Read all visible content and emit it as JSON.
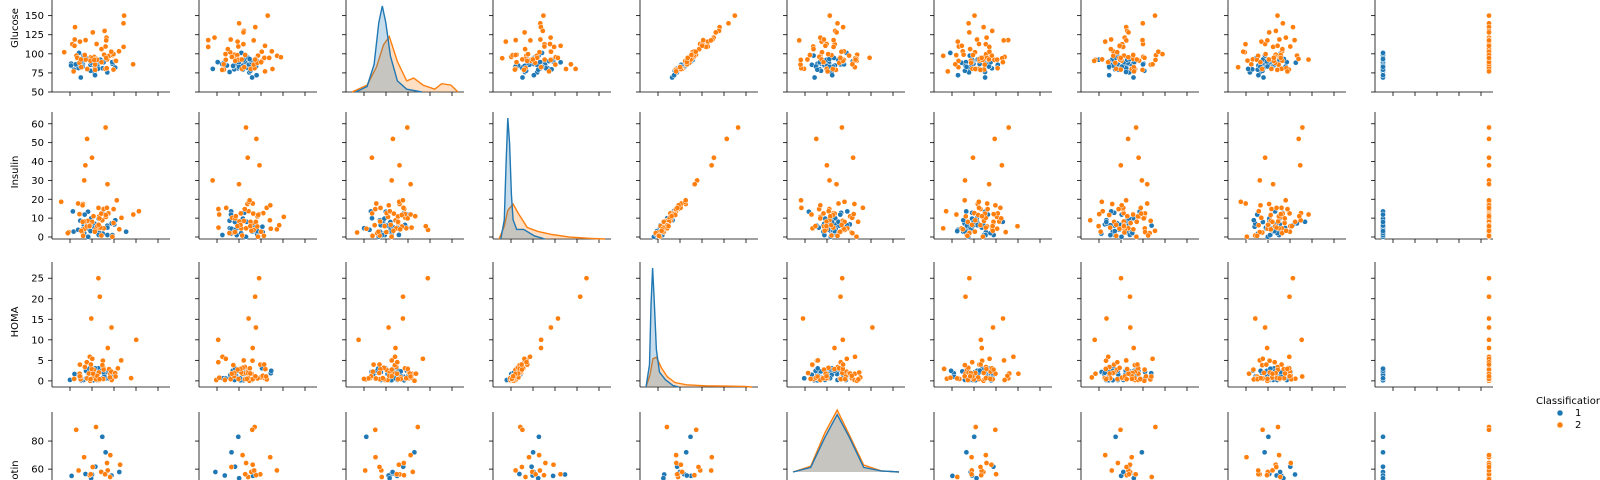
{
  "chart_data": {
    "type": "scatter",
    "description_kind": "pairplot",
    "rows": [
      "Glucose",
      "Insulin",
      "HOMA",
      "Leptin"
    ],
    "row_labels": [
      "Glucose",
      "Insulin",
      "HOMA",
      "otin"
    ],
    "ylims": {
      "Glucose": [
        50,
        160
      ],
      "Insulin": [
        0,
        62
      ],
      "HOMA": [
        -1,
        27
      ],
      "Leptin": [
        38,
        95
      ]
    },
    "yticks": {
      "Glucose": [
        50,
        75,
        100,
        125,
        150
      ],
      "Insulin": [
        0,
        10,
        20,
        30,
        40,
        50,
        60
      ],
      "HOMA": [
        0,
        5,
        10,
        15,
        20,
        25
      ],
      "Leptin": [
        60,
        80
      ]
    },
    "legend": {
      "title": "Classification",
      "placement": "right",
      "entries": [
        {
          "label": "1",
          "color": "#1f77b4"
        },
        {
          "label": "2",
          "color": "#ff7f0e"
        }
      ]
    },
    "series_colors": {
      "1": "#1f77b4",
      "2": "#ff7f0e"
    },
    "diagonal": {
      "Glucose": {
        "col": 2,
        "kde": {
          "1": {
            "x": [
              68,
              78,
              84,
              88,
              91,
              94,
              98,
              104,
              112,
              125
            ],
            "y": [
              0.0,
              0.004,
              0.02,
              0.05,
              0.062,
              0.05,
              0.026,
              0.008,
              0.002,
              0.0
            ]
          },
          "2": {
            "x": [
              65,
              78,
              86,
              92,
              97,
              104,
              112,
              118,
              126,
              136,
              142,
              150,
              156
            ],
            "y": [
              0.0,
              0.005,
              0.018,
              0.034,
              0.04,
              0.022,
              0.008,
              0.01,
              0.005,
              0.002,
              0.006,
              0.005,
              0.0
            ]
          }
        }
      },
      "Insulin": {
        "col": 3,
        "kde": {
          "1": {
            "x": [
              1,
              3,
              4,
              5,
              6,
              7,
              8,
              10,
              14,
              20,
              26
            ],
            "y": [
              0.0,
              0.03,
              0.12,
              0.19,
              0.15,
              0.07,
              0.03,
              0.015,
              0.015,
              0.005,
              0.0
            ]
          },
          "2": {
            "x": [
              0,
              3,
              5,
              8,
              11,
              16,
              22,
              30,
              40,
              52,
              60
            ],
            "y": [
              0.0,
              0.02,
              0.045,
              0.055,
              0.04,
              0.018,
              0.012,
              0.007,
              0.003,
              0.001,
              0.0
            ]
          }
        }
      },
      "HOMA": {
        "col": 4,
        "kde": {
          "1": {
            "x": [
              -0.5,
              0.4,
              0.8,
              1.2,
              1.6,
              2.2,
              3,
              4.5,
              6.5,
              8
            ],
            "y": [
              0.0,
              0.15,
              0.55,
              0.8,
              0.6,
              0.25,
              0.1,
              0.05,
              0.01,
              0.0
            ]
          },
          "2": {
            "x": [
              -0.5,
              0.5,
              1.3,
              2.2,
              3.5,
              5,
              7,
              10,
              15,
              20,
              25,
              27
            ],
            "y": [
              0.0,
              0.08,
              0.19,
              0.2,
              0.13,
              0.07,
              0.03,
              0.015,
              0.008,
              0.006,
              0.004,
              0.0
            ]
          }
        }
      },
      "Leptin": {
        "col": 5,
        "kde": {
          "1": {
            "x": [
              30,
              40,
              48,
              55,
              62,
              70,
              80,
              90
            ],
            "y": [
              0.0,
              0.004,
              0.03,
              0.05,
              0.03,
              0.004,
              0.001,
              0.0
            ]
          },
          "2": {
            "x": [
              30,
              40,
              48,
              55,
              62,
              70,
              80,
              90
            ],
            "y": [
              0.0,
              0.005,
              0.034,
              0.054,
              0.032,
              0.006,
              0.001,
              0.0
            ]
          }
        }
      }
    },
    "classification_column": {
      "col": 9,
      "class1_x": 1,
      "class2_x": 2
    }
  }
}
